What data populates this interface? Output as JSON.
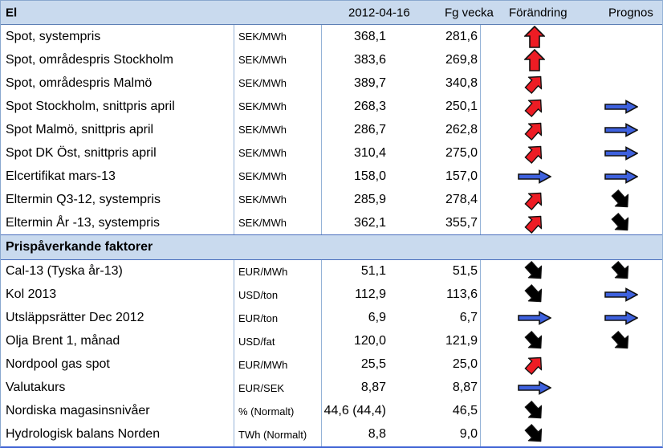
{
  "header": {
    "title": "El",
    "date_col": "2012-04-16",
    "prev_col": "Fg vecka",
    "change_col": "Förändring",
    "forecast_col": "Prognos"
  },
  "colors": {
    "red": "#ed1c24",
    "blue": "#3e61de",
    "black": "#000000",
    "band_bg": "#c9daee",
    "grid_line": "#95b3d7",
    "bottom_border": "#3f63d4"
  },
  "sections": [
    {
      "title": null,
      "rows": [
        {
          "name": "Spot, systempris",
          "unit": "SEK/MWh",
          "value": "368,1",
          "prev": "281,6",
          "change": {
            "dir": "up",
            "color": "red"
          },
          "forecast": null
        },
        {
          "name": "Spot, områdespris Stockholm",
          "unit": "SEK/MWh",
          "value": "383,6",
          "prev": "269,8",
          "change": {
            "dir": "up",
            "color": "red"
          },
          "forecast": null
        },
        {
          "name": "Spot, områdespris Malmö",
          "unit": "SEK/MWh",
          "value": "389,7",
          "prev": "340,8",
          "change": {
            "dir": "up-right",
            "color": "red"
          },
          "forecast": null
        },
        {
          "name": "Spot Stockholm, snittpris april",
          "unit": "SEK/MWh",
          "value": "268,3",
          "prev": "250,1",
          "change": {
            "dir": "up-right",
            "color": "red"
          },
          "forecast": {
            "dir": "right",
            "color": "blue"
          }
        },
        {
          "name": "Spot Malmö, snittpris april",
          "unit": "SEK/MWh",
          "value": "286,7",
          "prev": "262,8",
          "change": {
            "dir": "up-right",
            "color": "red"
          },
          "forecast": {
            "dir": "right",
            "color": "blue"
          }
        },
        {
          "name": "Spot DK Öst, snittpris april",
          "unit": "SEK/MWh",
          "value": "310,4",
          "prev": "275,0",
          "change": {
            "dir": "up-right",
            "color": "red"
          },
          "forecast": {
            "dir": "right",
            "color": "blue"
          }
        },
        {
          "name": "Elcertifikat mars-13",
          "unit": "SEK/MWh",
          "value": "158,0",
          "prev": "157,0",
          "change": {
            "dir": "right",
            "color": "blue"
          },
          "forecast": {
            "dir": "right",
            "color": "blue"
          }
        },
        {
          "name": "Eltermin Q3-12, systempris",
          "unit": "SEK/MWh",
          "value": "285,9",
          "prev": "278,4",
          "change": {
            "dir": "up-right",
            "color": "red"
          },
          "forecast": {
            "dir": "down-right",
            "color": "black"
          }
        },
        {
          "name": "Eltermin År -13, systempris",
          "unit": "SEK/MWh",
          "value": "362,1",
          "prev": "355,7",
          "change": {
            "dir": "up-right",
            "color": "red"
          },
          "forecast": {
            "dir": "down-right",
            "color": "black"
          }
        }
      ]
    },
    {
      "title": "Prispåverkande faktorer",
      "rows": [
        {
          "name": "Cal-13 (Tyska år-13)",
          "unit": "EUR/MWh",
          "value": "51,1",
          "prev": "51,5",
          "change": {
            "dir": "down-right",
            "color": "black"
          },
          "forecast": {
            "dir": "down-right",
            "color": "black"
          }
        },
        {
          "name": "Kol 2013",
          "unit": "USD/ton",
          "value": "112,9",
          "prev": "113,6",
          "change": {
            "dir": "down-right",
            "color": "black"
          },
          "forecast": {
            "dir": "right",
            "color": "blue"
          }
        },
        {
          "name": "Utsläppsrätter Dec 2012",
          "unit": "EUR/ton",
          "value": "6,9",
          "prev": "6,7",
          "change": {
            "dir": "right",
            "color": "blue"
          },
          "forecast": {
            "dir": "right",
            "color": "blue"
          }
        },
        {
          "name": "Olja Brent 1, månad",
          "unit": "USD/fat",
          "value": "120,0",
          "prev": "121,9",
          "change": {
            "dir": "down-right",
            "color": "black"
          },
          "forecast": {
            "dir": "down-right",
            "color": "black"
          }
        },
        {
          "name": "Nordpool gas spot",
          "unit": "EUR/MWh",
          "value": "25,5",
          "prev": "25,0",
          "change": {
            "dir": "up-right",
            "color": "red"
          },
          "forecast": null
        },
        {
          "name": "Valutakurs",
          "unit": "EUR/SEK",
          "value": "8,87",
          "prev": "8,87",
          "change": {
            "dir": "right",
            "color": "blue"
          },
          "forecast": null
        },
        {
          "name": "Nordiska magasinsnivåer",
          "unit": "% (Normalt)",
          "value": "44,6 (44,4)",
          "prev": "46,5",
          "change": {
            "dir": "down-right",
            "color": "black"
          },
          "forecast": null
        },
        {
          "name": "Hydrologisk balans Norden",
          "unit": "TWh (Normalt)",
          "value": "8,8",
          "prev": "9,0",
          "change": {
            "dir": "down-right",
            "color": "black"
          },
          "forecast": null
        }
      ]
    }
  ]
}
